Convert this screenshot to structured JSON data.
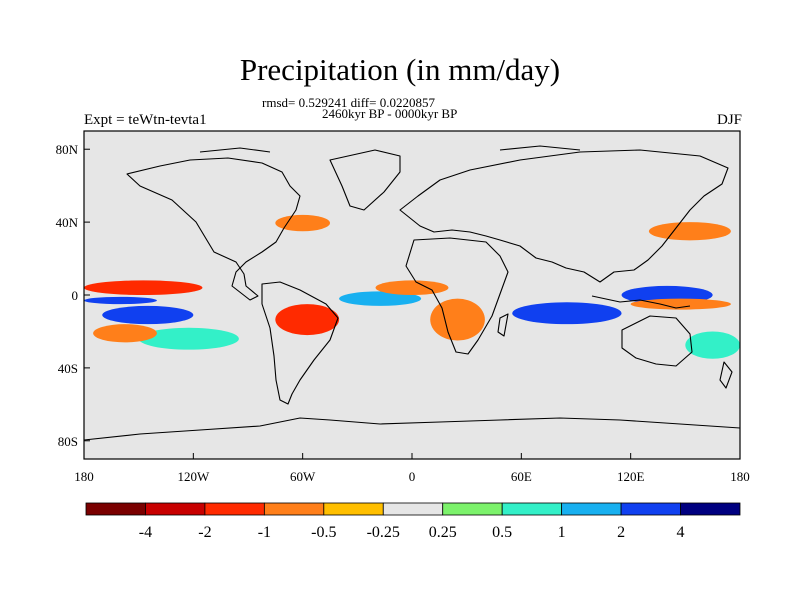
{
  "title": "Precipitation (in mm/day)",
  "subtitle_stats": "rmsd= 0.529241 diff= 0.0220857",
  "subtitle_period": "2460kyr BP - 0000kyr BP",
  "left_label": "Expt = teWtn-tevta1",
  "right_label": "DJF",
  "colors": {
    "land_ocean_neutral": "#e6e6e6",
    "coastline": "#000000"
  },
  "x_axis": {
    "ticks": [
      {
        "lon": -180,
        "label": "180"
      },
      {
        "lon": -120,
        "label": "120W"
      },
      {
        "lon": -60,
        "label": "60W"
      },
      {
        "lon": 0,
        "label": "0"
      },
      {
        "lon": 60,
        "label": "60E"
      },
      {
        "lon": 120,
        "label": "120E"
      },
      {
        "lon": 180,
        "label": "180"
      }
    ]
  },
  "y_axis": {
    "ticks": [
      {
        "lat": 80,
        "label": "80N"
      },
      {
        "lat": 40,
        "label": "40N"
      },
      {
        "lat": 0,
        "label": "0"
      },
      {
        "lat": -40,
        "label": "40S"
      },
      {
        "lat": -80,
        "label": "80S"
      }
    ]
  },
  "colorbar": {
    "boxes": [
      "#7a0000",
      "#c80000",
      "#ff2a00",
      "#ff7f1a",
      "#ffbf00",
      "#e6e6e6",
      "#7cf26b",
      "#33f0c8",
      "#18b0f0",
      "#1040f0",
      "#000080"
    ],
    "labels": [
      "-4",
      "-2",
      "-1",
      "-0.5",
      "-0.25",
      "0.25",
      "0.5",
      "1",
      "2",
      "4"
    ]
  },
  "chart_data": {
    "type": "heatmap",
    "title": "Precipitation (in mm/day)",
    "variable": "precipitation difference",
    "units": "mm/day",
    "season": "DJF",
    "lon_range": [
      -180,
      180
    ],
    "lat_range": [
      -90,
      90
    ],
    "levels": [
      -4,
      -2,
      -1,
      -0.5,
      -0.25,
      0.25,
      0.5,
      1,
      2,
      4
    ],
    "anomaly_regions": [
      {
        "name": "central-pacific-wet-north",
        "lon": [
          -180,
          -115
        ],
        "lat": [
          0,
          8
        ],
        "value": -1.5
      },
      {
        "name": "central-pacific-dry-band",
        "lon": [
          -180,
          -140
        ],
        "lat": [
          -5,
          -1
        ],
        "value": 2
      },
      {
        "name": "south-pacific-wet",
        "lon": [
          -170,
          -120
        ],
        "lat": [
          -16,
          -6
        ],
        "value": 2.5
      },
      {
        "name": "south-pacific-tail",
        "lon": [
          -150,
          -95
        ],
        "lat": [
          -30,
          -18
        ],
        "value": 0.6
      },
      {
        "name": "east-pacific-wet-south",
        "lon": [
          -175,
          -140
        ],
        "lat": [
          -26,
          -16
        ],
        "value": -1
      },
      {
        "name": "amazon-dry",
        "lon": [
          -75,
          -40
        ],
        "lat": [
          -22,
          -5
        ],
        "value": -1.5
      },
      {
        "name": "atlantic-itcz-wet",
        "lon": [
          -40,
          5
        ],
        "lat": [
          -6,
          2
        ],
        "value": 1.5
      },
      {
        "name": "africa-sahel-dry",
        "lon": [
          -20,
          20
        ],
        "lat": [
          0,
          8
        ],
        "value": -1
      },
      {
        "name": "southern-africa-dry",
        "lon": [
          10,
          40
        ],
        "lat": [
          -25,
          -2
        ],
        "value": -1
      },
      {
        "name": "indian-ocean-wet",
        "lon": [
          55,
          115
        ],
        "lat": [
          -16,
          -4
        ],
        "value": 2.5
      },
      {
        "name": "maritime-continent-wet",
        "lon": [
          115,
          165
        ],
        "lat": [
          -5,
          5
        ],
        "value": 2
      },
      {
        "name": "maritime-continent-dry",
        "lon": [
          120,
          175
        ],
        "lat": [
          -8,
          -2
        ],
        "value": -1
      },
      {
        "name": "north-atlantic-dry",
        "lon": [
          -75,
          -45
        ],
        "lat": [
          35,
          44
        ],
        "value": -0.8
      },
      {
        "name": "north-pacific-dry",
        "lon": [
          130,
          175
        ],
        "lat": [
          30,
          40
        ],
        "value": -0.8
      },
      {
        "name": "south-pacific-east-wet",
        "lon": [
          150,
          180
        ],
        "lat": [
          -35,
          -20
        ],
        "value": 0.6
      }
    ]
  }
}
